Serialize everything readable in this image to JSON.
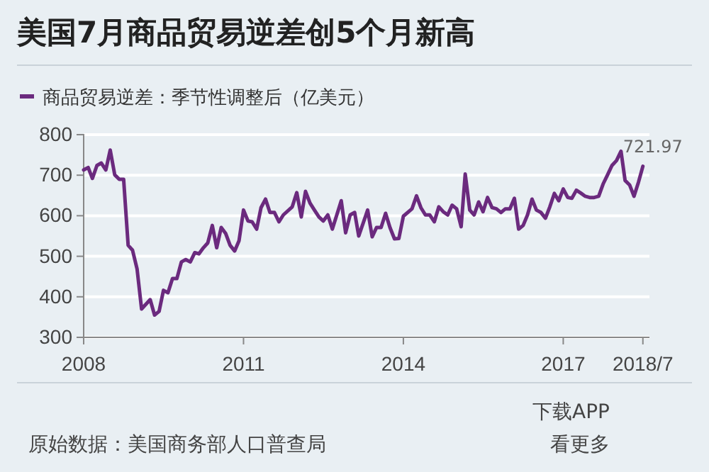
{
  "chart_data": {
    "type": "line",
    "title": "美国7月商品贸易逆差创5个月新高",
    "x": [
      "2008-01",
      "2008-02",
      "2008-03",
      "2008-04",
      "2008-05",
      "2008-06",
      "2008-07",
      "2008-08",
      "2008-09",
      "2008-10",
      "2008-11",
      "2008-12",
      "2009-01",
      "2009-02",
      "2009-04",
      "2009-05",
      "2009-06",
      "2009-07",
      "2009-08",
      "2009-09",
      "2009-10",
      "2009-11",
      "2009-12",
      "2010-01",
      "2010-02",
      "2010-03",
      "2010-04",
      "2010-05",
      "2010-06",
      "2010-07",
      "2010-08",
      "2010-09",
      "2010-10",
      "2010-11",
      "2010-12",
      "2011-01",
      "2011-02",
      "2011-03",
      "2011-04",
      "2011-05",
      "2011-06",
      "2011-07",
      "2011-08",
      "2011-09",
      "2011-10",
      "2011-12",
      "2012-01",
      "2012-02",
      "2012-03",
      "2012-04",
      "2012-05",
      "2012-06",
      "2012-07",
      "2012-08",
      "2012-09",
      "2012-11",
      "2012-12",
      "2013-01",
      "2013-02",
      "2013-03",
      "2013-05",
      "2013-06",
      "2013-07",
      "2013-08",
      "2013-09",
      "2013-10",
      "2013-11",
      "2013-12",
      "2014-01",
      "2014-03",
      "2014-04",
      "2014-05",
      "2014-06",
      "2014-07",
      "2014-08",
      "2014-09",
      "2014-10",
      "2014-11",
      "2014-12",
      "2015-01",
      "2015-02",
      "2015-03",
      "2015-04",
      "2015-05",
      "2015-06",
      "2015-07",
      "2015-08",
      "2015-09",
      "2015-10",
      "2015-11",
      "2015-12",
      "2016-01",
      "2016-02",
      "2016-03",
      "2016-04",
      "2016-05",
      "2016-06",
      "2016-07",
      "2016-08",
      "2016-09",
      "2016-10",
      "2016-11",
      "2016-12",
      "2017-01",
      "2017-02",
      "2017-03",
      "2017-04",
      "2017-05",
      "2017-06",
      "2017-07",
      "2017-08",
      "2017-09",
      "2017-10",
      "2017-11",
      "2017-12",
      "2018-01",
      "2018-02",
      "2018-03",
      "2018-04",
      "2018-05",
      "2018-06",
      "2018-07"
    ],
    "series": [
      {
        "name": "商品贸易逆差：季节性调整后（亿美元）",
        "color": "#6b2a7e",
        "values": [
          713,
          719,
          692,
          724,
          730,
          713,
          762,
          701,
          690,
          690,
          527,
          515,
          469,
          370,
          393,
          355,
          364,
          416,
          410,
          445,
          445,
          486,
          492,
          486,
          509,
          506,
          521,
          533,
          576,
          521,
          571,
          556,
          527,
          513,
          538,
          614,
          587,
          585,
          567,
          620,
          641,
          608,
          608,
          585,
          602,
          622,
          657,
          597,
          660,
          631,
          614,
          597,
          587,
          602,
          567,
          637,
          558,
          602,
          608,
          550,
          614,
          548,
          571,
          571,
          606,
          571,
          543,
          544,
          599,
          617,
          649,
          620,
          602,
          602,
          585,
          622,
          610,
          602,
          626,
          617,
          573,
          703,
          614,
          602,
          634,
          610,
          645,
          620,
          617,
          608,
          617,
          617,
          643,
          567,
          576,
          602,
          641,
          614,
          608,
          594,
          622,
          655,
          637,
          666,
          645,
          643,
          663,
          656,
          648,
          645,
          645,
          648,
          678,
          701,
          724,
          736,
          759,
          687,
          676,
          648,
          683,
          721.97
        ]
      }
    ],
    "xlim": [
      "2008-01",
      "2018-08-15"
    ],
    "xticks": [
      {
        "value": "2008",
        "label": "2008"
      },
      {
        "value": "2011",
        "label": "2011"
      },
      {
        "value": "2014",
        "label": "2014"
      },
      {
        "value": "2017",
        "label": "2017"
      },
      {
        "value": "2018-07",
        "label": "2018/7"
      }
    ],
    "ylim": [
      300,
      800
    ],
    "yticks": [
      300,
      400,
      500,
      600,
      700,
      800
    ],
    "grid": "y",
    "legend": "top left",
    "marker": "none",
    "line_style": "solid",
    "annotations": [
      {
        "text": "721.97",
        "x": "2018-07",
        "y": 721.97
      },
      "原始数据：美国商务部人口普查局",
      "下载APP",
      "看更多"
    ]
  }
}
